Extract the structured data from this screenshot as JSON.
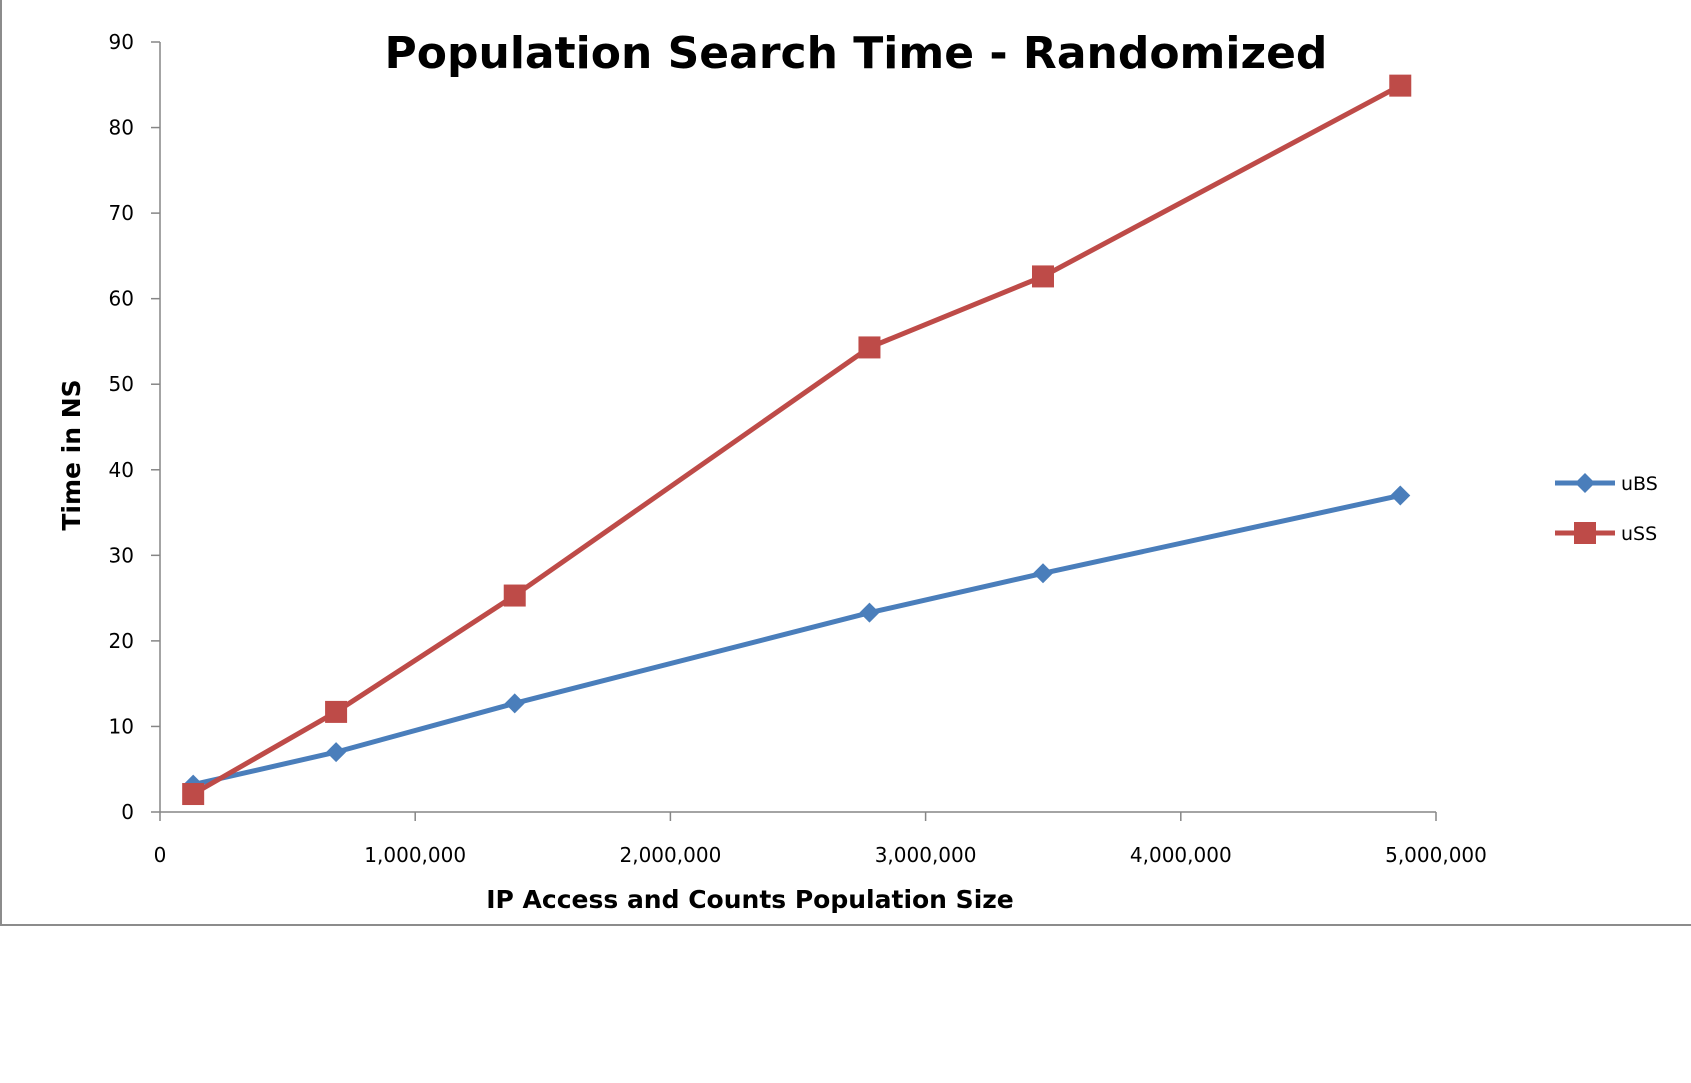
{
  "chart_data": {
    "type": "line",
    "title": "Population Search Time - Randomized",
    "xlabel": "IP Access and Counts Population Size",
    "ylabel": "Time in NS",
    "xlim": [
      0,
      5000000
    ],
    "ylim": [
      0,
      90
    ],
    "x_ticks": [
      "0",
      "1,000,000",
      "2,000,000",
      "3,000,000",
      "4,000,000",
      "5,000,000"
    ],
    "y_ticks": [
      "0",
      "10",
      "20",
      "30",
      "40",
      "50",
      "60",
      "70",
      "80",
      "90"
    ],
    "grid": false,
    "legend_position": "right",
    "series": [
      {
        "name": "uBS",
        "color": "#4a7ebb",
        "marker": "diamond",
        "x": [
          130000,
          690000,
          1390000,
          2780000,
          3460000,
          4860000
        ],
        "y": [
          3.2,
          7.0,
          12.7,
          23.3,
          27.9,
          37.0
        ]
      },
      {
        "name": "uSS",
        "color": "#be4b48",
        "marker": "square",
        "x": [
          130000,
          690000,
          1390000,
          2780000,
          3460000,
          4860000
        ],
        "y": [
          2.1,
          11.7,
          25.3,
          54.3,
          62.6,
          84.9
        ]
      }
    ]
  }
}
